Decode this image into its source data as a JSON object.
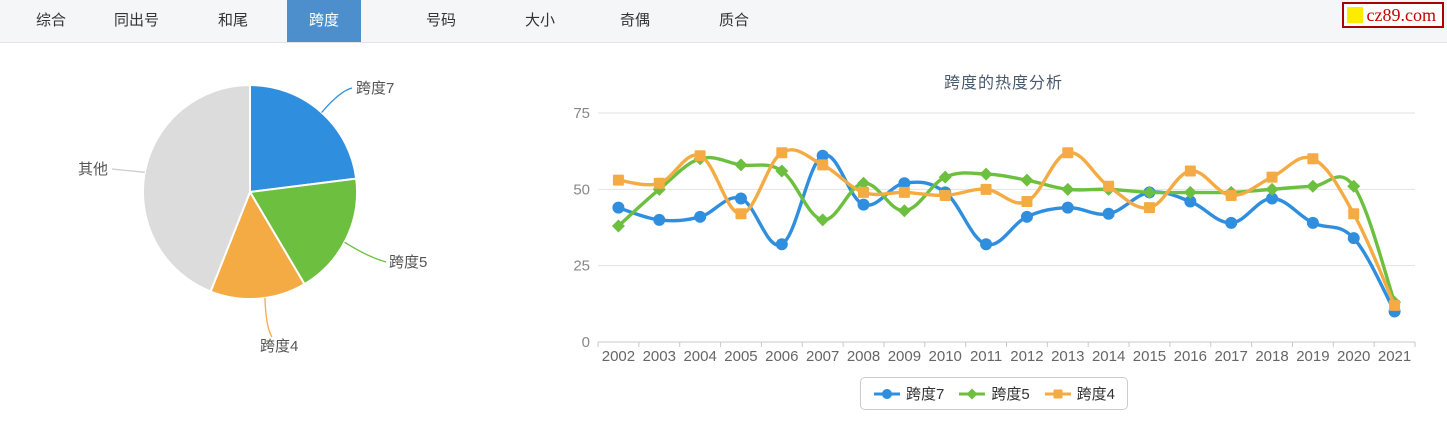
{
  "nav": {
    "tabs": [
      {
        "label": "综合",
        "active": false
      },
      {
        "label": "同出号",
        "active": false
      },
      {
        "label": "和尾",
        "active": false
      },
      {
        "label": "跨度",
        "active": true
      },
      {
        "label": "号码",
        "active": false
      },
      {
        "label": "大小",
        "active": false
      },
      {
        "label": "奇偶",
        "active": false
      },
      {
        "label": "质合",
        "active": false
      }
    ],
    "active_color": "#4c8fcc"
  },
  "logo": {
    "text": "cz89.com",
    "border_color": "#aa0000",
    "text_color": "#cc0000",
    "square_color": "#ffeb00"
  },
  "chart_data": [
    {
      "type": "pie",
      "slices": [
        {
          "label": "跨度7",
          "percent": 23.0,
          "color": "#2f8edd"
        },
        {
          "label": "跨度5",
          "percent": 18.5,
          "color": "#6dbf40"
        },
        {
          "label": "跨度4",
          "percent": 14.5,
          "color": "#f5ab44"
        },
        {
          "label": "其他",
          "percent": 44.0,
          "color": "#dcdcdc"
        }
      ],
      "label_color": "#555555",
      "start_angle": "top",
      "direction": "clockwise"
    },
    {
      "type": "line",
      "title": "跨度的热度分析",
      "x": [
        "2002",
        "2003",
        "2004",
        "2005",
        "2006",
        "2007",
        "2008",
        "2009",
        "2010",
        "2011",
        "2012",
        "2013",
        "2014",
        "2015",
        "2016",
        "2017",
        "2018",
        "2019",
        "2020",
        "2021"
      ],
      "series": [
        {
          "name": "跨度7",
          "color": "#2f8edd",
          "symbol": "circle",
          "values": [
            44,
            40,
            41,
            47,
            32,
            61,
            45,
            52,
            49,
            32,
            41,
            44,
            42,
            49,
            46,
            39,
            47,
            39,
            34,
            10
          ]
        },
        {
          "name": "跨度5",
          "color": "#6dbf40",
          "symbol": "diamond",
          "values": [
            38,
            50,
            60,
            58,
            56,
            40,
            52,
            43,
            54,
            55,
            53,
            50,
            50,
            49,
            49,
            49,
            50,
            51,
            51,
            13
          ]
        },
        {
          "name": "跨度4",
          "color": "#f5ab44",
          "symbol": "square",
          "values": [
            53,
            52,
            61,
            42,
            62,
            58,
            49,
            49,
            48,
            50,
            46,
            62,
            51,
            44,
            56,
            48,
            54,
            60,
            42,
            12
          ]
        }
      ],
      "ylim": [
        0,
        75
      ],
      "yticks": [
        0,
        25,
        50,
        75
      ],
      "grid": true,
      "smooth": true,
      "legend_position": "bottom",
      "axis_text_color_y": "#888888",
      "axis_text_color_x": "#666666",
      "grid_color": "#e2e2e2",
      "axis_line_color": "#c9c9c9"
    }
  ]
}
